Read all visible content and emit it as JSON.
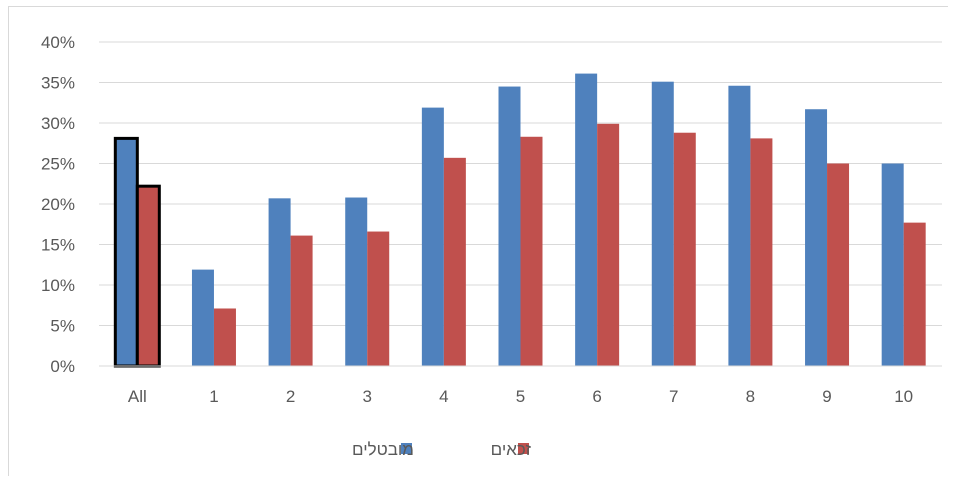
{
  "chart_data": {
    "type": "bar",
    "categories": [
      "All",
      "1",
      "2",
      "3",
      "4",
      "5",
      "6",
      "7",
      "8",
      "9",
      "10"
    ],
    "series": [
      {
        "name": "מובטלים",
        "values": [
          28.1,
          11.9,
          20.7,
          20.8,
          31.9,
          34.5,
          36.1,
          35.1,
          34.6,
          31.7,
          25.0
        ],
        "color": "#4f81bd"
      },
      {
        "name": "זכאים",
        "values": [
          22.2,
          7.1,
          16.1,
          16.6,
          25.7,
          28.3,
          29.9,
          28.8,
          28.1,
          25.0,
          17.7
        ],
        "color": "#c0504d"
      }
    ],
    "y_ticks": [
      "0%",
      "5%",
      "10%",
      "15%",
      "20%",
      "25%",
      "30%",
      "35%",
      "40%"
    ],
    "ylim": [
      0,
      40
    ],
    "highlighted_category": "All",
    "grid": true,
    "legend": "bottom-center"
  }
}
